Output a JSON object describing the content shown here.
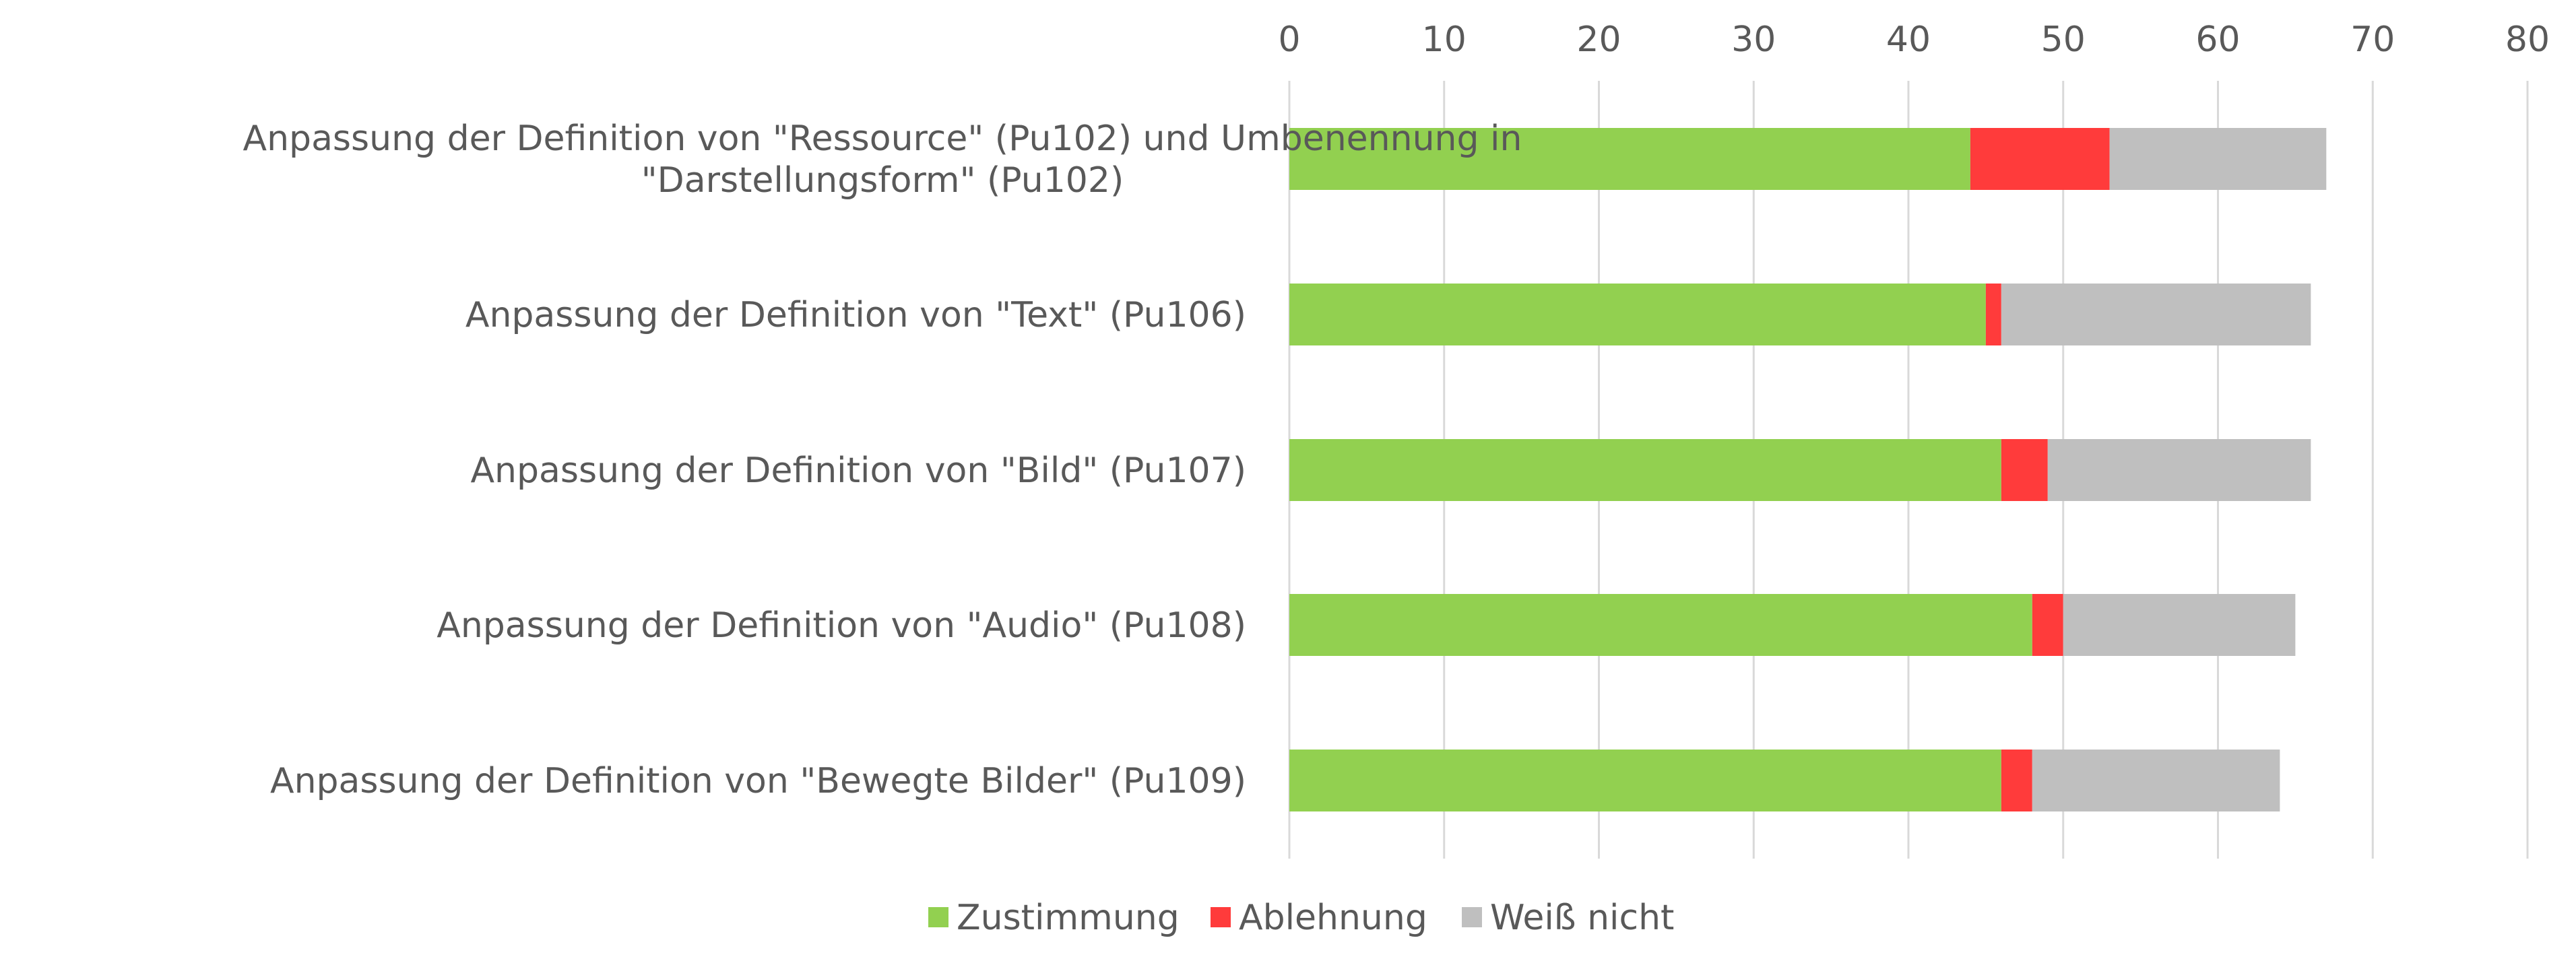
{
  "chart_data": {
    "type": "bar",
    "orientation": "horizontal",
    "stacked": true,
    "title": "",
    "xlabel": "",
    "ylabel": "",
    "xlim": [
      0,
      80
    ],
    "x_ticks": [
      0,
      10,
      20,
      30,
      40,
      50,
      60,
      70,
      80
    ],
    "x_axis_position": "top",
    "grid": true,
    "legend_position": "bottom",
    "categories": [
      [
        "Anpassung der Definition von \"Ressource\" (Pu102) und Umbenennung in",
        "\"Darstellungsform\" (Pu102)"
      ],
      [
        "Anpassung der Definition von \"Text\" (Pu106)"
      ],
      [
        "Anpassung der Definition von \"Bild\" (Pu107)"
      ],
      [
        "Anpassung der Definition von \"Audio\" (Pu108)"
      ],
      [
        "Anpassung der Definition von \"Bewegte Bilder\" (Pu109)"
      ]
    ],
    "series": [
      {
        "name": "Zustimmung",
        "color": "#92D050",
        "values": [
          44,
          45,
          46,
          48,
          46
        ]
      },
      {
        "name": "Ablehnung",
        "color": "#FF3B3B",
        "values": [
          9,
          1,
          3,
          2,
          2
        ]
      },
      {
        "name": "Weiß nicht",
        "color": "#BFBFBF",
        "values": [
          14,
          20,
          17,
          15,
          16
        ]
      }
    ],
    "gridline_color": "#D9D9D9",
    "text_color": "#595959"
  }
}
